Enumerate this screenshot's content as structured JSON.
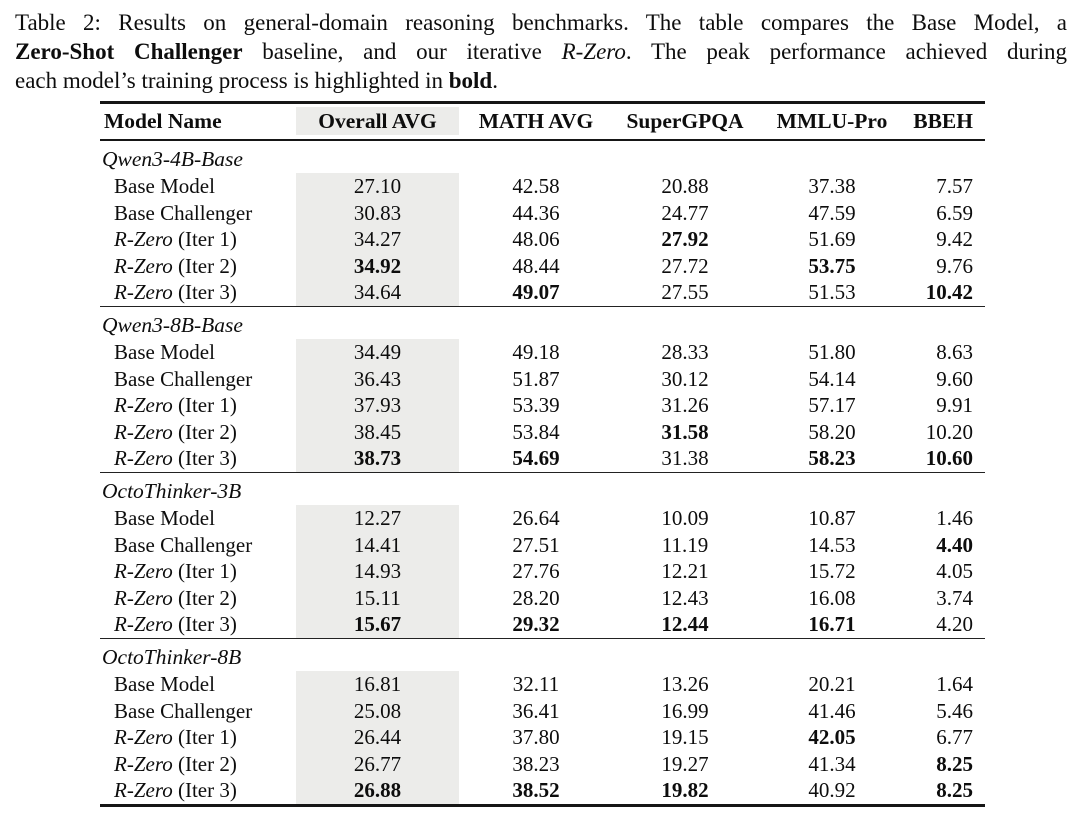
{
  "caption": {
    "line1": "Table 2: Results on general-domain reasoning benchmarks. The table compares the Base Model, a",
    "line2_bold": "Zero-Shot Challenger",
    "line2_mid": " baseline, and our iterative ",
    "line2_em": "R-Zero",
    "line2_rest": ". The peak performance achieved during",
    "line3_pre": "each model’s training process is highlighted in ",
    "line3_bold": "bold",
    "line3_post": "."
  },
  "table": {
    "highlight_color": "#ececea",
    "columns": [
      "Model Name",
      "Overall AVG",
      "MATH AVG",
      "SuperGPQA",
      "MMLU-Pro",
      "BBEH"
    ],
    "groups": [
      {
        "name": "Qwen3-4B-Base",
        "rows": [
          {
            "em": "",
            "label": "Base Model",
            "values": [
              "27.10",
              "42.58",
              "20.88",
              "37.38",
              "7.57"
            ],
            "bold": [
              0,
              0,
              0,
              0,
              0
            ]
          },
          {
            "em": "",
            "label": "Base Challenger",
            "values": [
              "30.83",
              "44.36",
              "24.77",
              "47.59",
              "6.59"
            ],
            "bold": [
              0,
              0,
              0,
              0,
              0
            ]
          },
          {
            "em": "R-Zero",
            "label": " (Iter 1)",
            "values": [
              "34.27",
              "48.06",
              "27.92",
              "51.69",
              "9.42"
            ],
            "bold": [
              0,
              0,
              1,
              0,
              0
            ]
          },
          {
            "em": "R-Zero",
            "label": " (Iter 2)",
            "values": [
              "34.92",
              "48.44",
              "27.72",
              "53.75",
              "9.76"
            ],
            "bold": [
              1,
              0,
              0,
              1,
              0
            ]
          },
          {
            "em": "R-Zero",
            "label": " (Iter 3)",
            "values": [
              "34.64",
              "49.07",
              "27.55",
              "51.53",
              "10.42"
            ],
            "bold": [
              0,
              1,
              0,
              0,
              1
            ]
          }
        ]
      },
      {
        "name": "Qwen3-8B-Base",
        "rows": [
          {
            "em": "",
            "label": "Base Model",
            "values": [
              "34.49",
              "49.18",
              "28.33",
              "51.80",
              "8.63"
            ],
            "bold": [
              0,
              0,
              0,
              0,
              0
            ]
          },
          {
            "em": "",
            "label": "Base Challenger",
            "values": [
              "36.43",
              "51.87",
              "30.12",
              "54.14",
              "9.60"
            ],
            "bold": [
              0,
              0,
              0,
              0,
              0
            ]
          },
          {
            "em": "R-Zero",
            "label": " (Iter 1)",
            "values": [
              "37.93",
              "53.39",
              "31.26",
              "57.17",
              "9.91"
            ],
            "bold": [
              0,
              0,
              0,
              0,
              0
            ]
          },
          {
            "em": "R-Zero",
            "label": " (Iter 2)",
            "values": [
              "38.45",
              "53.84",
              "31.58",
              "58.20",
              "10.20"
            ],
            "bold": [
              0,
              0,
              1,
              0,
              0
            ]
          },
          {
            "em": "R-Zero",
            "label": " (Iter 3)",
            "values": [
              "38.73",
              "54.69",
              "31.38",
              "58.23",
              "10.60"
            ],
            "bold": [
              1,
              1,
              0,
              1,
              1
            ]
          }
        ]
      },
      {
        "name": "OctoThinker-3B",
        "rows": [
          {
            "em": "",
            "label": "Base Model",
            "values": [
              "12.27",
              "26.64",
              "10.09",
              "10.87",
              "1.46"
            ],
            "bold": [
              0,
              0,
              0,
              0,
              0
            ]
          },
          {
            "em": "",
            "label": "Base Challenger",
            "values": [
              "14.41",
              "27.51",
              "11.19",
              "14.53",
              "4.40"
            ],
            "bold": [
              0,
              0,
              0,
              0,
              1
            ]
          },
          {
            "em": "R-Zero",
            "label": " (Iter 1)",
            "values": [
              "14.93",
              "27.76",
              "12.21",
              "15.72",
              "4.05"
            ],
            "bold": [
              0,
              0,
              0,
              0,
              0
            ]
          },
          {
            "em": "R-Zero",
            "label": " (Iter 2)",
            "values": [
              "15.11",
              "28.20",
              "12.43",
              "16.08",
              "3.74"
            ],
            "bold": [
              0,
              0,
              0,
              0,
              0
            ]
          },
          {
            "em": "R-Zero",
            "label": " (Iter 3)",
            "values": [
              "15.67",
              "29.32",
              "12.44",
              "16.71",
              "4.20"
            ],
            "bold": [
              1,
              1,
              1,
              1,
              0
            ]
          }
        ]
      },
      {
        "name": "OctoThinker-8B",
        "rows": [
          {
            "em": "",
            "label": "Base Model",
            "values": [
              "16.81",
              "32.11",
              "13.26",
              "20.21",
              "1.64"
            ],
            "bold": [
              0,
              0,
              0,
              0,
              0
            ]
          },
          {
            "em": "",
            "label": "Base Challenger",
            "values": [
              "25.08",
              "36.41",
              "16.99",
              "41.46",
              "5.46"
            ],
            "bold": [
              0,
              0,
              0,
              0,
              0
            ]
          },
          {
            "em": "R-Zero",
            "label": " (Iter 1)",
            "values": [
              "26.44",
              "37.80",
              "19.15",
              "42.05",
              "6.77"
            ],
            "bold": [
              0,
              0,
              0,
              1,
              0
            ]
          },
          {
            "em": "R-Zero",
            "label": " (Iter 2)",
            "values": [
              "26.77",
              "38.23",
              "19.27",
              "41.34",
              "8.25"
            ],
            "bold": [
              0,
              0,
              0,
              0,
              1
            ]
          },
          {
            "em": "R-Zero",
            "label": " (Iter 3)",
            "values": [
              "26.88",
              "38.52",
              "19.82",
              "40.92",
              "8.25"
            ],
            "bold": [
              1,
              1,
              1,
              0,
              1
            ]
          }
        ]
      }
    ]
  }
}
